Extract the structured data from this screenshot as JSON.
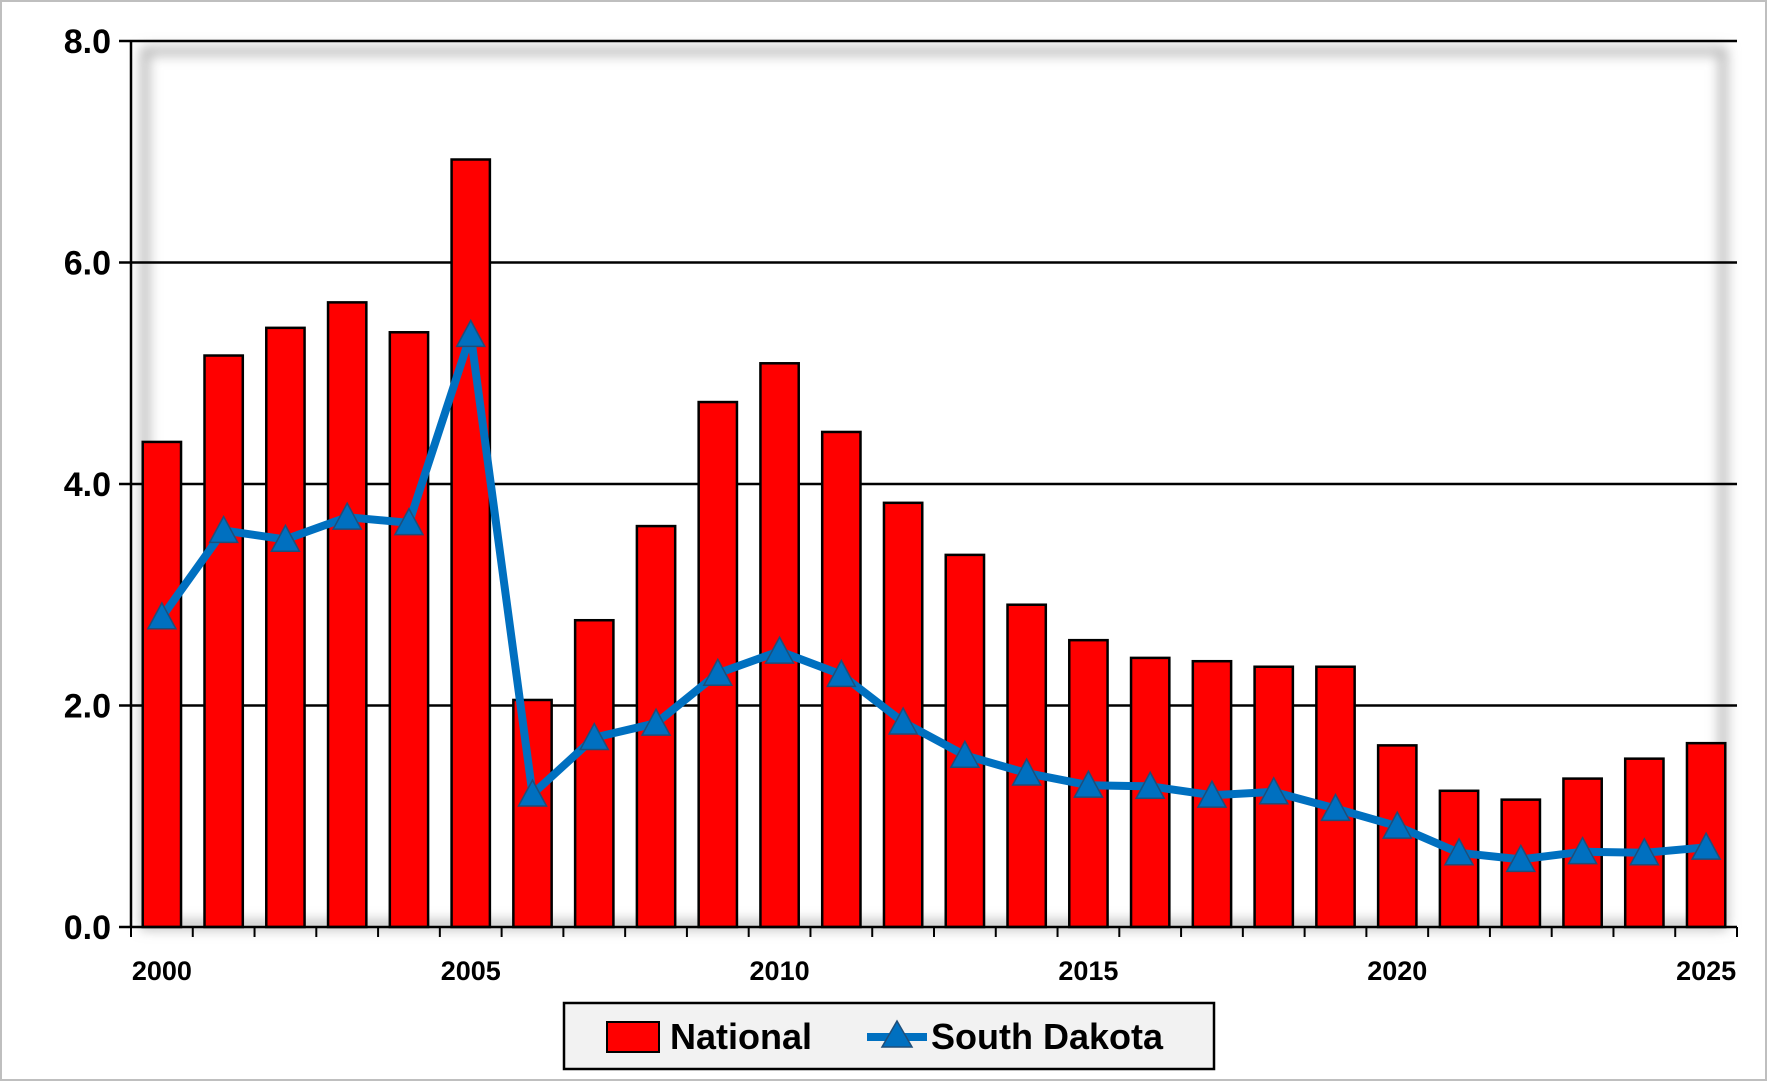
{
  "chart_data": {
    "type": "bar",
    "title": "",
    "xlabel": "",
    "ylabel": "",
    "ylim": [
      0,
      8
    ],
    "yticks": [
      "0.0",
      "2.0",
      "4.0",
      "6.0",
      "8.0"
    ],
    "xtick_labels": [
      "2000",
      "2005",
      "2010",
      "2015",
      "2020",
      "2025"
    ],
    "categories": [
      2000,
      2001,
      2002,
      2003,
      2004,
      2005,
      2006,
      2007,
      2008,
      2009,
      2010,
      2011,
      2012,
      2013,
      2014,
      2015,
      2016,
      2017,
      2018,
      2019,
      2020,
      2021,
      2022,
      2023,
      2024,
      2025
    ],
    "grid": true,
    "legend_position": "bottom-center",
    "series": [
      {
        "name": "National",
        "kind": "bar",
        "color": "#ff0000",
        "values": [
          4.38,
          5.16,
          5.41,
          5.64,
          5.37,
          6.93,
          2.05,
          2.77,
          3.62,
          4.74,
          5.09,
          4.47,
          3.83,
          3.36,
          2.91,
          2.59,
          2.43,
          2.4,
          2.35,
          2.35,
          1.64,
          1.23,
          1.15,
          1.34,
          1.52,
          1.66
        ]
      },
      {
        "name": "South Dakota",
        "kind": "line",
        "marker": "triangle",
        "color": "#0070c0",
        "values": [
          2.8,
          3.58,
          3.5,
          3.7,
          3.65,
          5.35,
          1.2,
          1.71,
          1.84,
          2.29,
          2.49,
          2.28,
          1.85,
          1.55,
          1.39,
          1.28,
          1.27,
          1.19,
          1.22,
          1.07,
          0.91,
          0.67,
          0.61,
          0.68,
          0.67,
          0.72
        ]
      }
    ]
  }
}
